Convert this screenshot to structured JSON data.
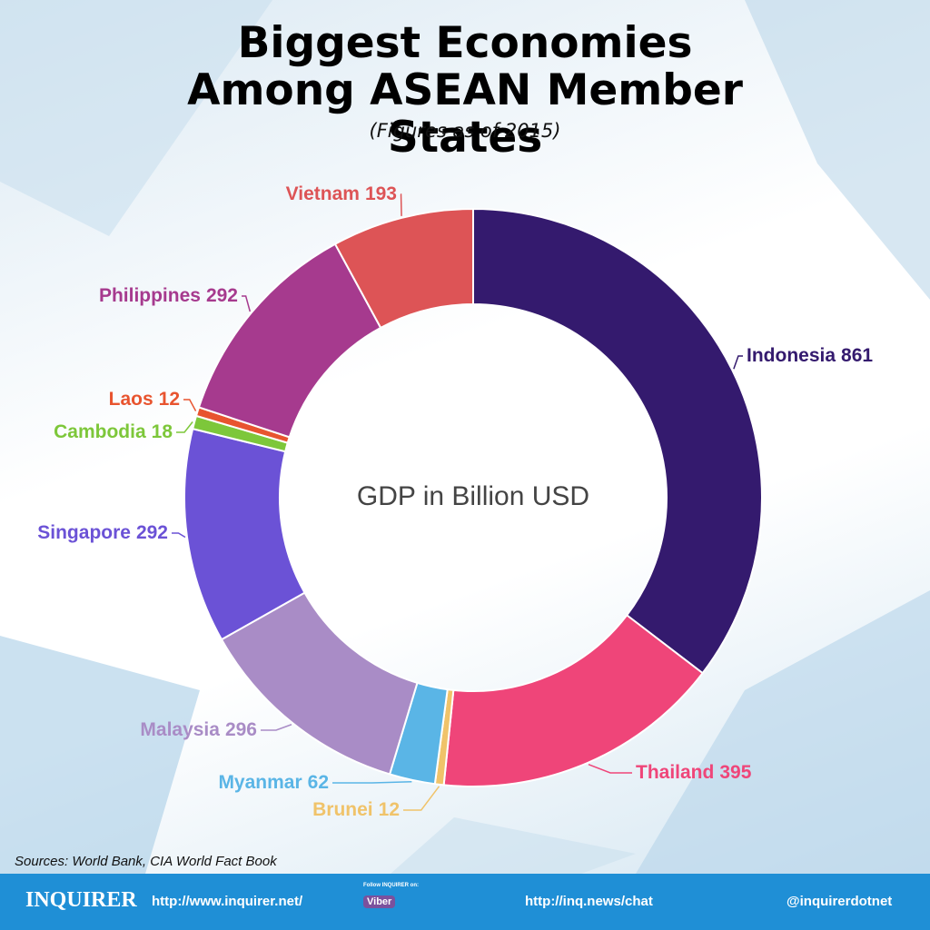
{
  "chart_data": {
    "type": "donut",
    "title": "Biggest Economies Among ASEAN Member States",
    "subtitle": "(Figures as of 2015)",
    "center_label": "GDP in Billion USD",
    "categories": [
      "Indonesia",
      "Thailand",
      "Brunei",
      "Myanmar",
      "Malaysia",
      "Singapore",
      "Cambodia",
      "Laos",
      "Philippines",
      "Vietnam"
    ],
    "values": [
      861,
      395,
      12,
      62,
      296,
      292,
      18,
      12,
      292,
      193
    ],
    "colors": [
      "#341a6e",
      "#ef4579",
      "#f0c36a",
      "#5ab5e6",
      "#a98cc6",
      "#6b52d6",
      "#7dc73a",
      "#e8542f",
      "#a63a8e",
      "#dd5456"
    ],
    "source": "Sources: World Bank, CIA World Fact Book"
  },
  "footer": {
    "brand": "INQUIRER",
    "site": "http://www.inquirer.net/",
    "follow": "Follow INQUIRER on:",
    "viber": "Viber",
    "chat": "http://inq.news/chat",
    "handle": "@inquirerdotnet"
  }
}
